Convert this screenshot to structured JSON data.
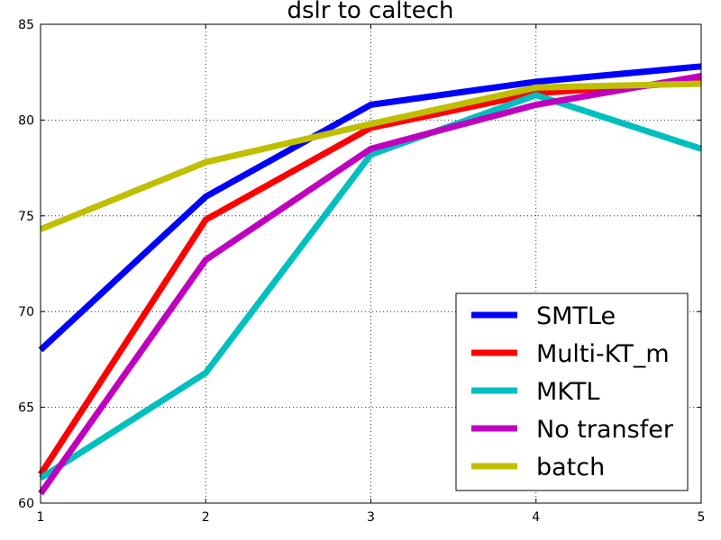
{
  "chart_data": {
    "type": "line",
    "title": "dslr to caltech",
    "xlabel": "",
    "ylabel": "",
    "x": [
      1,
      2,
      3,
      4,
      5
    ],
    "xlim": [
      1,
      5
    ],
    "ylim": [
      60,
      85
    ],
    "xticks": [
      "1",
      "2",
      "3",
      "4",
      "5"
    ],
    "yticks": [
      "60",
      "65",
      "70",
      "75",
      "80",
      "85"
    ],
    "grid": true,
    "legend_position": "lower-right",
    "series": [
      {
        "name": "SMTLe",
        "color": "#0000ff",
        "values": [
          68.0,
          76.0,
          80.8,
          82.0,
          82.8
        ]
      },
      {
        "name": "Multi-KT_m",
        "color": "#ff0000",
        "values": [
          61.5,
          74.8,
          79.6,
          81.4,
          82.0
        ]
      },
      {
        "name": "MKTL",
        "color": "#00bfbf",
        "values": [
          61.3,
          66.8,
          78.2,
          81.3,
          78.5
        ]
      },
      {
        "name": "No transfer",
        "color": "#bf00bf",
        "values": [
          60.5,
          72.7,
          78.5,
          80.8,
          82.3
        ]
      },
      {
        "name": "batch",
        "color": "#bfbf00",
        "values": [
          74.3,
          77.8,
          79.8,
          81.7,
          81.9
        ]
      }
    ]
  }
}
